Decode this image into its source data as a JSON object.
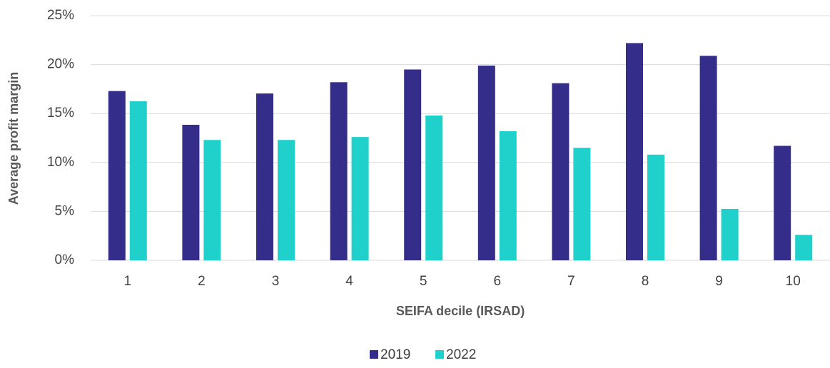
{
  "chart_data": {
    "type": "bar",
    "x_label": "SEIFA decile (IRSAD)",
    "y_label": "Average profit margin",
    "categories": [
      "1",
      "2",
      "3",
      "4",
      "5",
      "6",
      "7",
      "8",
      "9",
      "10"
    ],
    "series": [
      {
        "name": "2019",
        "color": "#352d8a",
        "values": [
          17.3,
          13.85,
          17.05,
          18.2,
          19.5,
          19.9,
          18.1,
          22.2,
          20.9,
          11.7
        ]
      },
      {
        "name": "2022",
        "color": "#1fd0cb",
        "values": [
          16.25,
          12.3,
          12.3,
          12.6,
          14.8,
          13.2,
          11.5,
          10.8,
          5.25,
          2.6
        ]
      }
    ],
    "ylim": [
      0,
      25
    ],
    "yticks": [
      {
        "value": 0,
        "label": "0%"
      },
      {
        "value": 5,
        "label": "5%"
      },
      {
        "value": 10,
        "label": "10%"
      },
      {
        "value": 15,
        "label": "15%"
      },
      {
        "value": 20,
        "label": "20%"
      },
      {
        "value": 25,
        "label": "25%"
      }
    ],
    "grid": true,
    "legend": "bottom"
  }
}
